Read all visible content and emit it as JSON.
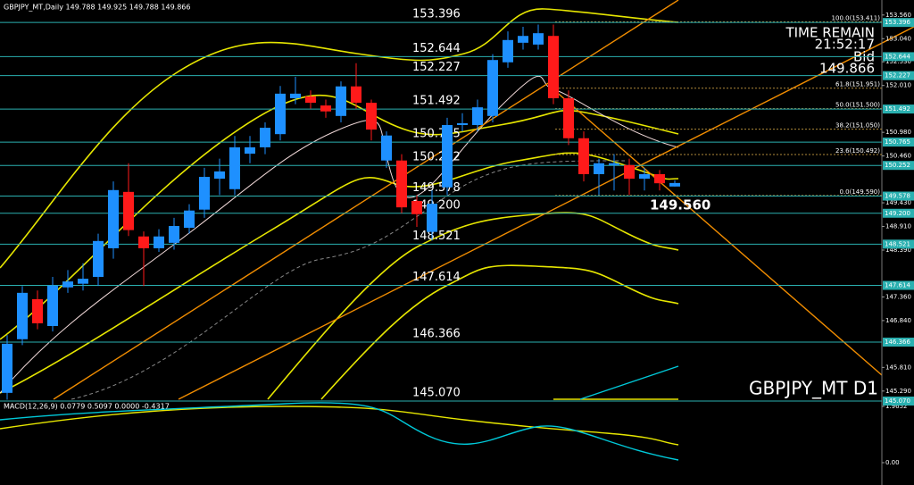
{
  "chart_data": {
    "type": "candlestick",
    "header": "GBPJPY_MT,Daily  149.788 149.925 149.788 149.866",
    "info": [
      "TIME REMAIN",
      "21:52:17",
      "Bid",
      "149.866"
    ],
    "symbol_label": "GBPJPY_MT D1",
    "price_label": "149.560",
    "up_color": "#1e90ff",
    "down_color": "#ff1a1a",
    "level_color": "#2ab0b0",
    "fib_color": "#b08a3a",
    "ylim": [
      145.09,
      153.89
    ],
    "yticks": [
      {
        "value": 153.56,
        "label": "153.560"
      },
      {
        "value": 153.04,
        "label": "153.040"
      },
      {
        "value": 152.53,
        "label": "152.530"
      },
      {
        "value": 152.01,
        "label": "152.010"
      },
      {
        "value": 150.98,
        "label": "150.980"
      },
      {
        "value": 150.46,
        "label": "150.460"
      },
      {
        "value": 149.43,
        "label": "149.430"
      },
      {
        "value": 148.91,
        "label": "148.910"
      },
      {
        "value": 148.39,
        "label": "148.390"
      },
      {
        "value": 147.36,
        "label": "147.360"
      },
      {
        "value": 146.84,
        "label": "146.840"
      },
      {
        "value": 145.81,
        "label": "145.810"
      },
      {
        "value": 145.29,
        "label": "145.290"
      }
    ],
    "levels": [
      153.396,
      152.644,
      152.227,
      151.492,
      150.765,
      150.252,
      149.578,
      {
        "value": 149.2,
        "label": "149.200"
      },
      148.521,
      147.614,
      146.366,
      {
        "value": 145.07,
        "label": "145.070"
      }
    ],
    "fib": [
      {
        "value": 153.411,
        "label": "100.0(153.411)"
      },
      {
        "value": 151.951,
        "label": "61.8(151.951)"
      },
      {
        "value": 151.5,
        "label": "50.0(151.500)"
      },
      {
        "value": 151.05,
        "label": "38.2(151.050)"
      },
      {
        "value": 150.492,
        "label": "23.6(150.492)"
      },
      {
        "value": 149.59,
        "label": "0.0(149.590)"
      }
    ],
    "open": [
      145.25,
      146.43,
      147.31,
      146.72,
      147.57,
      147.65,
      147.8,
      148.43,
      149.67,
      148.69,
      148.43,
      148.55,
      148.88,
      149.28,
      149.96,
      149.73,
      150.51,
      150.65,
      150.94,
      151.73,
      151.77,
      151.57,
      151.34,
      151.99,
      151.63,
      150.36,
      150.36,
      149.47,
      148.79,
      149.77,
      151.14,
      151.14,
      151.34,
      152.52,
      152.95,
      152.91,
      153.1,
      151.73,
      150.85,
      150.06,
      150.26,
      150.26,
      149.96,
      150.06,
      149.788
    ],
    "high": [
      146.52,
      147.6,
      147.5,
      147.8,
      147.95,
      148.1,
      148.75,
      149.9,
      150.3,
      148.8,
      148.85,
      149.1,
      149.4,
      150.2,
      150.4,
      150.9,
      150.9,
      151.2,
      152.0,
      152.2,
      151.9,
      151.7,
      152.1,
      152.5,
      151.7,
      151.0,
      150.5,
      149.6,
      149.7,
      151.3,
      151.4,
      151.7,
      152.7,
      153.2,
      153.3,
      153.35,
      153.35,
      151.9,
      151.0,
      150.4,
      150.5,
      150.4,
      150.2,
      150.15,
      149.925
    ],
    "low": [
      145.1,
      146.3,
      146.65,
      146.6,
      147.45,
      147.5,
      147.6,
      148.2,
      148.7,
      147.6,
      148.35,
      148.4,
      148.75,
      149.1,
      149.6,
      149.6,
      150.3,
      150.5,
      150.8,
      151.6,
      151.5,
      151.3,
      151.2,
      151.5,
      150.8,
      150.2,
      149.2,
      148.9,
      148.6,
      149.6,
      151.0,
      151.0,
      151.2,
      152.4,
      152.8,
      152.8,
      151.6,
      150.7,
      149.9,
      149.6,
      149.7,
      149.6,
      149.7,
      149.7,
      149.788
    ],
    "close": [
      146.33,
      147.45,
      146.78,
      147.61,
      147.7,
      147.76,
      148.59,
      149.71,
      148.83,
      148.43,
      148.69,
      148.92,
      149.26,
      150.0,
      150.12,
      150.65,
      150.65,
      151.08,
      151.83,
      151.83,
      151.63,
      151.44,
      151.99,
      151.63,
      151.04,
      150.91,
      149.33,
      149.18,
      149.41,
      151.14,
      151.18,
      151.53,
      152.57,
      153.01,
      153.1,
      153.16,
      151.73,
      150.85,
      150.06,
      150.3,
      150.3,
      149.96,
      150.06,
      149.86,
      149.866
    ],
    "macd_label": "MACD(12,26,9) 0.0779 0.5097 0.0000 -0.4317",
    "macd_ylim": [
      -0.78,
      2.12
    ],
    "macd_yticks": [
      1.9652,
      {
        "value": 0,
        "label": "0.00"
      }
    ]
  }
}
